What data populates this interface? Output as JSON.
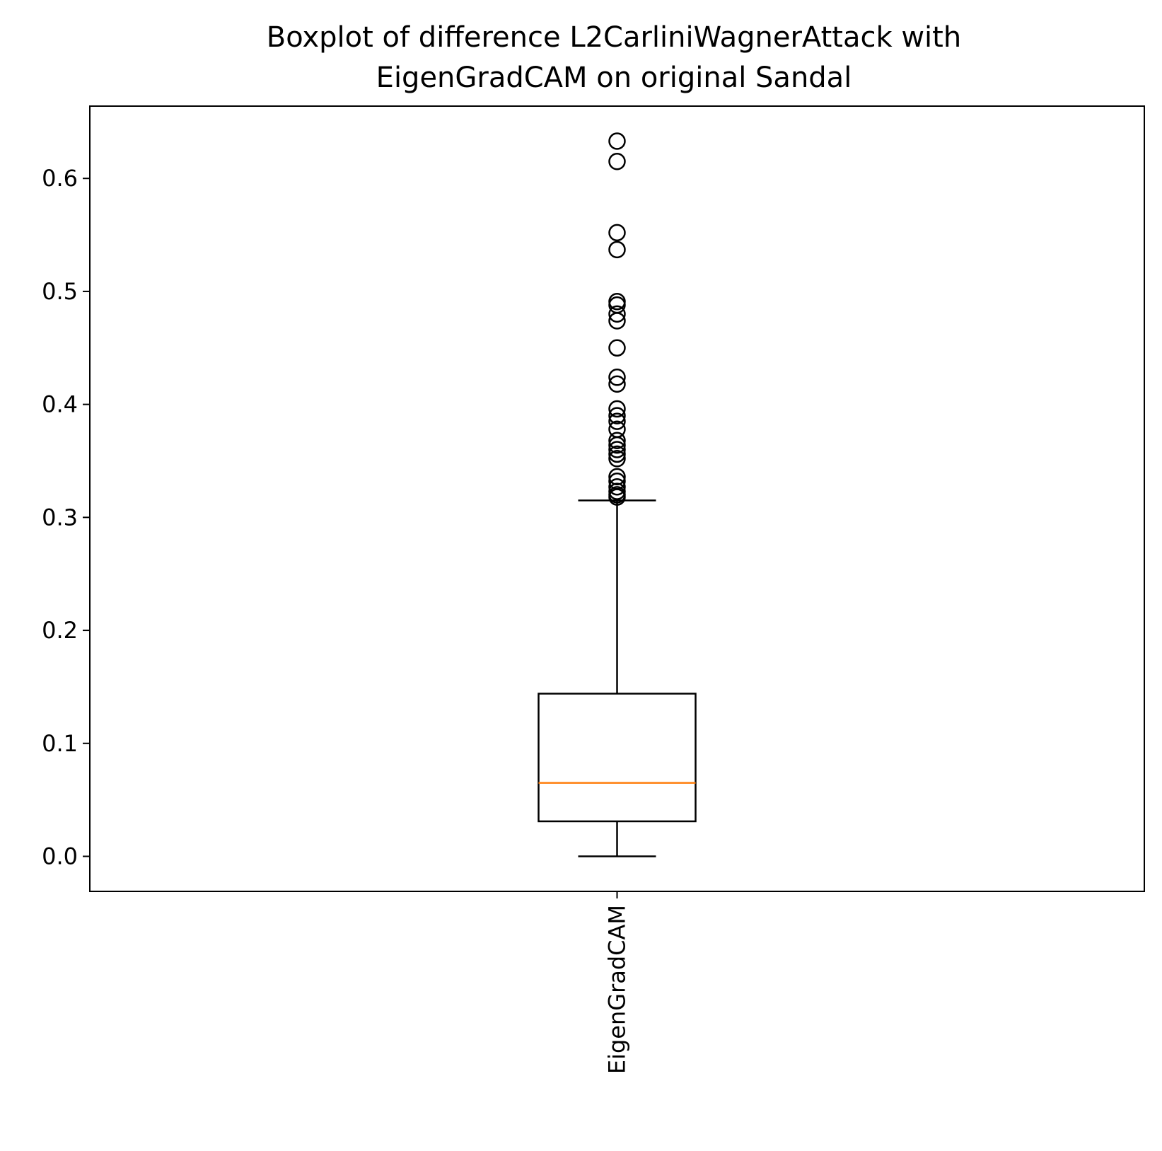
{
  "chart_data": {
    "type": "boxplot",
    "title": "Boxplot of difference L2CarliniWagnerAttack with\nEigenGradCAM on original Sandal",
    "title_lines": [
      "Boxplot of difference L2CarliniWagnerAttack with",
      "EigenGradCAM on original Sandal"
    ],
    "xlabel": "",
    "ylabel": "",
    "ylim": [
      -0.031,
      0.664
    ],
    "yticks": [
      0.0,
      0.1,
      0.2,
      0.3,
      0.4,
      0.5,
      0.6
    ],
    "ytick_labels": [
      "0.0",
      "0.1",
      "0.2",
      "0.3",
      "0.4",
      "0.5",
      "0.6"
    ],
    "categories": [
      "EigenGradCAM"
    ],
    "xtick_rotation": 90,
    "grid": false,
    "boxes": [
      {
        "label": "EigenGradCAM",
        "whisker_low": 0.0,
        "q1": 0.031,
        "median": 0.065,
        "q3": 0.144,
        "whisker_high": 0.315,
        "outliers": [
          0.318,
          0.32,
          0.323,
          0.327,
          0.332,
          0.336,
          0.352,
          0.356,
          0.36,
          0.364,
          0.368,
          0.378,
          0.385,
          0.39,
          0.396,
          0.418,
          0.424,
          0.45,
          0.474,
          0.48,
          0.488,
          0.491,
          0.537,
          0.552,
          0.615,
          0.633
        ]
      }
    ],
    "colors": {
      "box": "#000000",
      "median": "#ff7f0e",
      "outlier": "#000000"
    }
  }
}
